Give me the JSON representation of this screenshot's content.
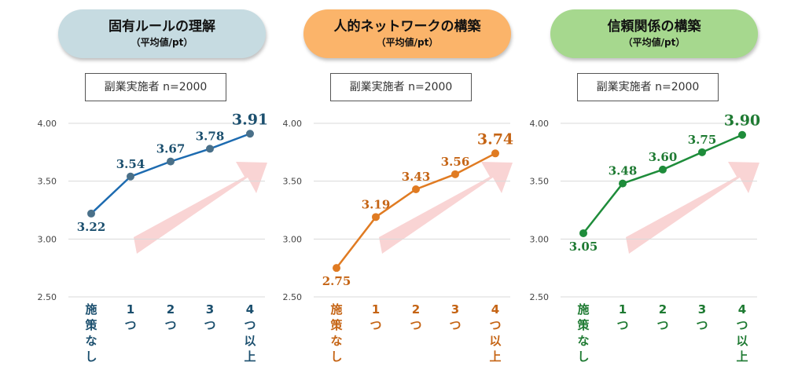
{
  "panels": [
    {
      "title": "固有ルールの理解",
      "subtitle": "（平均値/pt）",
      "sample": "副業実施者 n=2000"
    },
    {
      "title": "人的ネットワークの構築",
      "subtitle": "（平均値/pt）",
      "sample": "副業実施者 n=2000"
    },
    {
      "title": "信頼関係の構築",
      "subtitle": "（平均値/pt）",
      "sample": "副業実施者 n=2000"
    }
  ],
  "colors": {
    "pill": [
      "#c6dbe1",
      "#fbb46a",
      "#a6d88e"
    ],
    "series": [
      "#1d6bb0",
      "#e07b22",
      "#1e8c3a"
    ],
    "label": [
      "#1b4f6e",
      "#c56414",
      "#1e7a32"
    ],
    "marker": [
      "#4a7089",
      "#e07b22",
      "#1e8c3a"
    ],
    "arrow": "#f9d4d4",
    "grid": "#d9d9d9",
    "tick": "#444444"
  },
  "chart_data": [
    {
      "type": "line",
      "categories": [
        "施策なし",
        "1つ",
        "2つ",
        "3つ",
        "4つ以上"
      ],
      "category_lines": [
        [
          "施",
          "策",
          "な",
          "し"
        ],
        [
          "1",
          "つ"
        ],
        [
          "2",
          "つ"
        ],
        [
          "3",
          "つ"
        ],
        [
          "4",
          "つ",
          "以",
          "上"
        ]
      ],
      "values": [
        3.22,
        3.54,
        3.67,
        3.78,
        3.91
      ],
      "value_labels": [
        "3.22",
        "3.54",
        "3.67",
        "3.78",
        "3.91"
      ],
      "ylim": [
        2.5,
        4.0
      ],
      "yticks": [
        "2.50",
        "3.00",
        "3.50",
        "4.00"
      ],
      "grid": true
    },
    {
      "type": "line",
      "categories": [
        "施策なし",
        "1つ",
        "2つ",
        "3つ",
        "4つ以上"
      ],
      "category_lines": [
        [
          "施",
          "策",
          "な",
          "し"
        ],
        [
          "1",
          "つ"
        ],
        [
          "2",
          "つ"
        ],
        [
          "3",
          "つ"
        ],
        [
          "4",
          "つ",
          "以",
          "上"
        ]
      ],
      "values": [
        2.75,
        3.19,
        3.43,
        3.56,
        3.74
      ],
      "value_labels": [
        "2.75",
        "3.19",
        "3.43",
        "3.56",
        "3.74"
      ],
      "ylim": [
        2.5,
        4.0
      ],
      "yticks": [
        "2.50",
        "3.00",
        "3.50",
        "4.00"
      ],
      "grid": true
    },
    {
      "type": "line",
      "categories": [
        "施策なし",
        "1つ",
        "2つ",
        "3つ",
        "4つ以上"
      ],
      "category_lines": [
        [
          "施",
          "策",
          "な",
          "し"
        ],
        [
          "1",
          "つ"
        ],
        [
          "2",
          "つ"
        ],
        [
          "3",
          "つ"
        ],
        [
          "4",
          "つ",
          "以",
          "上"
        ]
      ],
      "values": [
        3.05,
        3.48,
        3.6,
        3.75,
        3.9
      ],
      "value_labels": [
        "3.05",
        "3.48",
        "3.60",
        "3.75",
        "3.90"
      ],
      "ylim": [
        2.5,
        4.0
      ],
      "yticks": [
        "2.50",
        "3.00",
        "3.50",
        "4.00"
      ],
      "grid": true
    }
  ]
}
